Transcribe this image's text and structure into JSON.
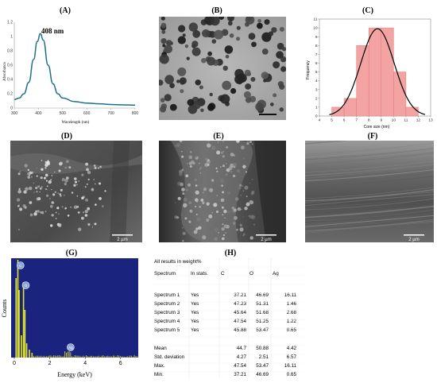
{
  "panels": {
    "A": "(A)",
    "B": "(B)",
    "C": "(C)",
    "D": "(D)",
    "E": "(E)",
    "F": "(F)",
    "G": "(G)",
    "H": "(H)"
  },
  "uvvis": {
    "peak_label": "408 nm",
    "xlabel": "Wavelength (nm)",
    "ylabel": "Absorbance",
    "xticks": [
      "300",
      "400",
      "500",
      "600",
      "700",
      "800"
    ],
    "yticks": [
      "0",
      "0.2",
      "0.4",
      "0.6",
      "0.8",
      "1",
      "1.2"
    ],
    "line_color": "#1f6f8b"
  },
  "micrographs": {
    "D_scale": "2 µm",
    "E_scale": "2 µm",
    "F_scale": "2 µm"
  },
  "eds": {
    "ylabel": "Counts",
    "xlabel": "Energy (keV)",
    "xticks": [
      "0",
      "2",
      "4",
      "6"
    ],
    "peak_labels": [
      "C",
      "O",
      "Ag"
    ],
    "background": "#1a237e",
    "spectrum_color": "#e5e52a"
  },
  "chart_data": [
    {
      "type": "line",
      "panel": "A",
      "xlabel": "Wavelength (nm)",
      "ylabel": "Absorbance",
      "xlim": [
        300,
        800
      ],
      "ylim": [
        0,
        1.2
      ],
      "x": [
        300,
        320,
        340,
        360,
        380,
        395,
        408,
        420,
        440,
        460,
        480,
        500,
        550,
        600,
        650,
        700,
        750,
        800
      ],
      "y": [
        0.12,
        0.14,
        0.2,
        0.36,
        0.68,
        0.93,
        1.04,
        0.95,
        0.6,
        0.34,
        0.2,
        0.14,
        0.09,
        0.07,
        0.06,
        0.05,
        0.045,
        0.04
      ],
      "annotations": [
        "408 nm"
      ]
    },
    {
      "type": "bar",
      "panel": "C",
      "xlabel": "Core size (nm)",
      "ylabel": "Frequency",
      "xlim": [
        4,
        13
      ],
      "ylim": [
        0,
        11
      ],
      "xticks": [
        "4",
        "5",
        "6",
        "7",
        "8",
        "9",
        "10",
        "11",
        "12",
        "13"
      ],
      "yticks": [
        "0",
        "1",
        "2",
        "3",
        "4",
        "5",
        "6",
        "7",
        "8",
        "9",
        "10",
        "11"
      ],
      "bins": [
        [
          5,
          6
        ],
        [
          6,
          7
        ],
        [
          7,
          8
        ],
        [
          8,
          9
        ],
        [
          9,
          10
        ],
        [
          10,
          11
        ],
        [
          11,
          12
        ]
      ],
      "values": [
        1,
        2,
        8,
        10,
        10,
        5,
        1
      ],
      "bar_color": "#f4a3a3",
      "fit": "normal curve",
      "fit_color": "#000000"
    }
  ],
  "table": {
    "title": "All results in weight%",
    "headers": [
      "Spectrum",
      "In stats.",
      "C",
      "O",
      "Ag"
    ],
    "rows": [
      [
        "Spectrum 1",
        "Yes",
        "37.21",
        "46.69",
        "16.11"
      ],
      [
        "Spectrum 2",
        "Yes",
        "47.23",
        "51.31",
        "1.46"
      ],
      [
        "Spectrum 3",
        "Yes",
        "45.64",
        "51.68",
        "2.68"
      ],
      [
        "Spectrum 4",
        "Yes",
        "47.54",
        "51.25",
        "1.22"
      ],
      [
        "Spectrum 5",
        "Yes",
        "45.88",
        "53.47",
        "0.65"
      ]
    ],
    "stats": [
      [
        "Mean",
        "",
        "44.7",
        "50.88",
        "4.42"
      ],
      [
        "Std. deviation",
        "",
        "4.27",
        "2.51",
        "6.57"
      ],
      [
        "Max.",
        "",
        "47.54",
        "53.47",
        "16.11"
      ],
      [
        "Min.",
        "",
        "37.21",
        "46.69",
        "0.65"
      ]
    ]
  }
}
